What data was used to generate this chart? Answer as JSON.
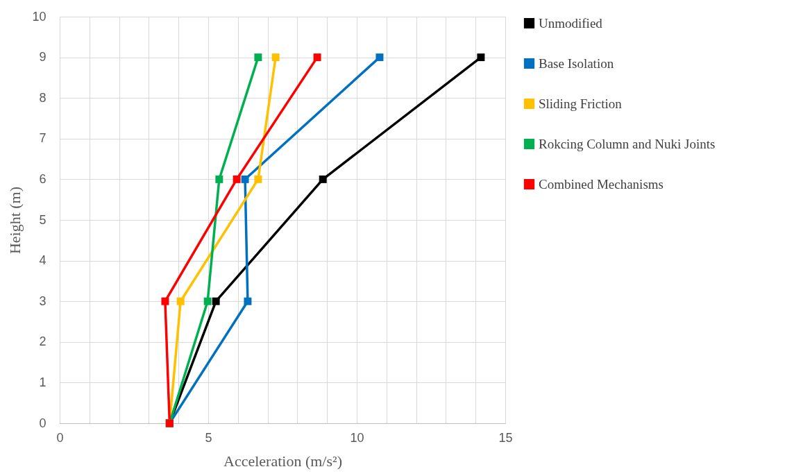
{
  "chart_data": {
    "type": "line",
    "xlabel": "Acceleration (m/s²)",
    "ylabel": "Height (m)",
    "xlim": [
      0,
      15
    ],
    "xticks": [
      0,
      {
        "value": 1,
        "label": null
      },
      {
        "value": 2,
        "label": null
      },
      {
        "value": 3,
        "label": null
      },
      {
        "value": 4,
        "label": null
      },
      5,
      {
        "value": 6,
        "label": null
      },
      {
        "value": 7,
        "label": null
      },
      {
        "value": 8,
        "label": null
      },
      {
        "value": 9,
        "label": null
      },
      10,
      {
        "value": 11,
        "label": null
      },
      {
        "value": 12,
        "label": null
      },
      {
        "value": 13,
        "label": null
      },
      {
        "value": 14,
        "label": null
      },
      15
    ],
    "ylim": [
      0,
      10
    ],
    "yticks": [
      0,
      1,
      2,
      3,
      4,
      5,
      6,
      7,
      8,
      9,
      10
    ],
    "grid": true,
    "legend": "right",
    "marker": "square",
    "line_style": "solid",
    "series": [
      {
        "name": "Unmodified",
        "color": "#000000",
        "x": [
          3.7,
          5.26,
          8.86,
          14.18
        ],
        "values": [
          0,
          3,
          6,
          9
        ]
      },
      {
        "name": "Base Isolation",
        "color": "#0070c0",
        "x": [
          3.7,
          6.33,
          6.24,
          10.77
        ],
        "values": [
          0,
          3,
          6,
          9
        ]
      },
      {
        "name": "Sliding Friction",
        "color": "#ffc000",
        "x": [
          3.7,
          4.07,
          6.68,
          7.27
        ],
        "values": [
          0,
          3,
          6,
          9
        ]
      },
      {
        "name": "Rokcing Column and Nuki Joints",
        "color": "#00b050",
        "x": [
          3.7,
          4.98,
          5.37,
          6.68
        ],
        "values": [
          0,
          3,
          6,
          9
        ]
      },
      {
        "name": "Combined Mechanisms",
        "color": "#ff0000",
        "x": [
          3.7,
          3.55,
          5.96,
          8.67
        ],
        "values": [
          0,
          3,
          6,
          9
        ]
      }
    ]
  }
}
